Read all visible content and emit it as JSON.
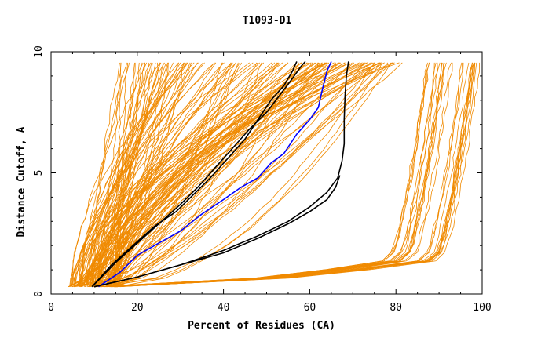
{
  "chart_data": {
    "type": "line",
    "title": "T1093-D1",
    "xlabel": "Percent of Residues (CA)",
    "ylabel": "Distance Cutoff, A",
    "xlim": [
      0,
      100
    ],
    "ylim": [
      0,
      10
    ],
    "xticks": [
      0,
      20,
      40,
      60,
      80,
      100
    ],
    "yticks": [
      0,
      5,
      10
    ],
    "grid": false,
    "legend": "none",
    "colors": {
      "models": "#f08a00",
      "highlight_black": "#000000",
      "highlight_blue": "#0000ff"
    },
    "series": [
      {
        "color": "black",
        "x": [
          9.5,
          14,
          19,
          24,
          29,
          33,
          37,
          41,
          45,
          48,
          51,
          54,
          56,
          57
        ],
        "y": [
          0.3,
          1.2,
          2.0,
          2.8,
          3.4,
          4.1,
          4.8,
          5.6,
          6.4,
          7.2,
          8.0,
          8.6,
          9.2,
          9.6
        ]
      },
      {
        "color": "black",
        "x": [
          9.5,
          15,
          20,
          25,
          30,
          34,
          38,
          42,
          46,
          50,
          53,
          56,
          58,
          59
        ],
        "y": [
          0.3,
          1.3,
          2.1,
          2.9,
          3.7,
          4.4,
          5.2,
          6.0,
          6.8,
          7.5,
          8.2,
          8.9,
          9.4,
          9.6
        ]
      },
      {
        "color": "blue",
        "x": [
          11,
          16,
          20,
          25,
          30,
          35,
          40,
          44,
          48,
          51,
          54,
          57,
          60,
          62,
          63,
          64,
          65
        ],
        "y": [
          0.3,
          0.9,
          1.6,
          2.1,
          2.6,
          3.3,
          3.9,
          4.4,
          4.8,
          5.4,
          5.8,
          6.6,
          7.2,
          7.7,
          8.5,
          9.2,
          9.6
        ]
      },
      {
        "color": "black",
        "x": [
          10,
          20,
          30,
          40,
          48,
          55,
          60,
          64,
          66.5,
          67.5,
          68,
          68,
          68.2,
          68.5,
          69
        ],
        "y": [
          0.3,
          0.7,
          1.2,
          1.8,
          2.4,
          3.0,
          3.6,
          4.2,
          4.8,
          5.5,
          6.2,
          7.2,
          8.2,
          9.0,
          9.6
        ]
      },
      {
        "color": "black",
        "x": [
          10,
          20,
          30,
          40,
          48,
          55,
          60,
          64,
          66,
          67
        ],
        "y": [
          0.3,
          0.7,
          1.2,
          1.7,
          2.3,
          2.9,
          3.4,
          3.9,
          4.4,
          4.9
        ]
      }
    ]
  }
}
